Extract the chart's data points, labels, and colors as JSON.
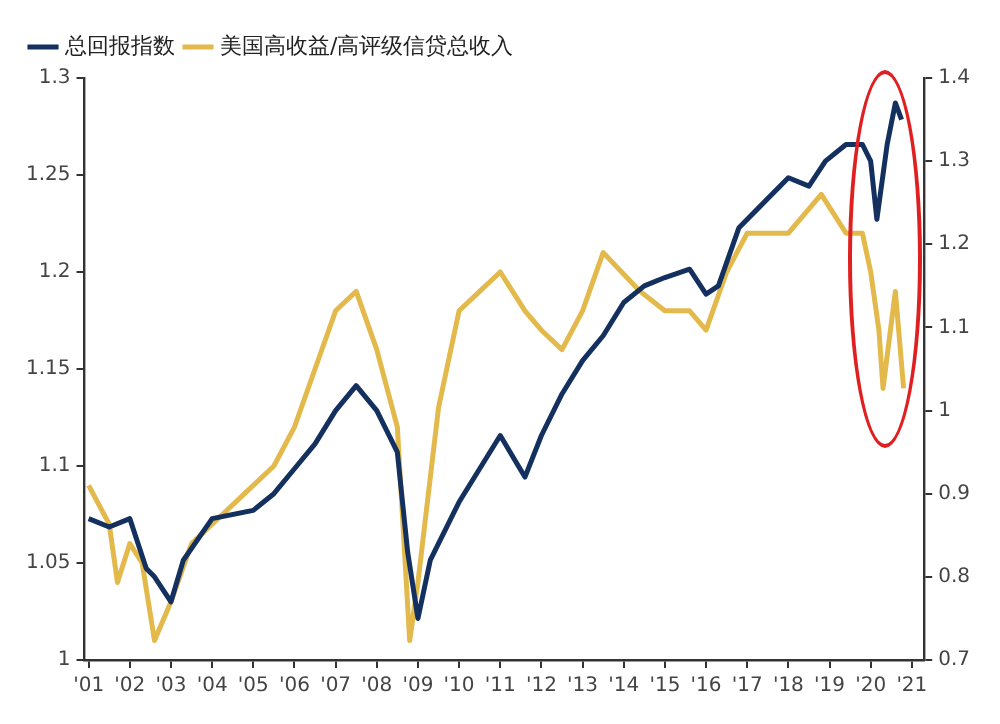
{
  "chart_data": {
    "type": "line",
    "legend": "top left",
    "grid": false,
    "marker": "none",
    "line_style": "solid",
    "xlim": [
      2000.9,
      2021.3
    ],
    "xticks": [
      {
        "value": 2001,
        "label": "'01"
      },
      {
        "value": 2002,
        "label": "'02"
      },
      {
        "value": 2003,
        "label": "'03"
      },
      {
        "value": 2004,
        "label": "'04"
      },
      {
        "value": 2005,
        "label": "'05"
      },
      {
        "value": 2006,
        "label": "'06"
      },
      {
        "value": 2007,
        "label": "'07"
      },
      {
        "value": 2008,
        "label": "'08"
      },
      {
        "value": 2009,
        "label": "'09"
      },
      {
        "value": 2010,
        "label": "'10"
      },
      {
        "value": 2011,
        "label": "'11"
      },
      {
        "value": 2012,
        "label": "'12"
      },
      {
        "value": 2013,
        "label": "'13"
      },
      {
        "value": 2014,
        "label": "'14"
      },
      {
        "value": 2015,
        "label": "'15"
      },
      {
        "value": 2016,
        "label": "'16"
      },
      {
        "value": 2017,
        "label": "'17"
      },
      {
        "value": 2018,
        "label": "'18"
      },
      {
        "value": 2019,
        "label": "'19"
      },
      {
        "value": 2020,
        "label": "'20"
      },
      {
        "value": 2021,
        "label": "'21"
      }
    ],
    "ylim": [
      1,
      1.3
    ],
    "yticks": [
      1,
      1.05,
      1.1,
      1.15,
      1.2,
      1.25,
      1.3
    ],
    "y2lim": [
      0.7,
      1.4
    ],
    "y2ticks": [
      0.7,
      0.8,
      0.9,
      1,
      1.1,
      1.2,
      1.3,
      1.4
    ],
    "series": [
      {
        "name": "总回报指数",
        "color": "#14305e",
        "axis": "y2",
        "x": [
          2001,
          2001.5,
          2002,
          2002.4,
          2002.6,
          2003,
          2003.3,
          2004,
          2005,
          2005.5,
          2006,
          2006.5,
          2007,
          2007.5,
          2008,
          2008.5,
          2008.75,
          2009,
          2009.3,
          2010,
          2010.5,
          2011,
          2011.6,
          2012,
          2012.5,
          2013,
          2013.5,
          2014,
          2014.5,
          2015,
          2015.6,
          2016,
          2016.3,
          2016.8,
          2018,
          2018.5,
          2018.9,
          2019.4,
          2019.8,
          2020,
          2020.15,
          2020.4,
          2020.6,
          2020.75
        ],
        "values": [
          0.87,
          0.86,
          0.87,
          0.81,
          0.8,
          0.77,
          0.82,
          0.87,
          0.88,
          0.9,
          0.93,
          0.96,
          1.0,
          1.03,
          1.0,
          0.95,
          0.83,
          0.75,
          0.82,
          0.89,
          0.93,
          0.97,
          0.92,
          0.97,
          1.02,
          1.06,
          1.09,
          1.13,
          1.15,
          1.16,
          1.17,
          1.14,
          1.15,
          1.22,
          1.28,
          1.27,
          1.3,
          1.32,
          1.32,
          1.3,
          1.23,
          1.32,
          1.37,
          1.35
        ]
      },
      {
        "name": "美国高收益/高评级信贷总收入",
        "color": "#e3b94c",
        "x": [
          2001,
          2001.5,
          2001.7,
          2002,
          2002.3,
          2002.6,
          2003,
          2003.5,
          2004,
          2005,
          2005.5,
          2006,
          2006.5,
          2007,
          2007.5,
          2008,
          2008.5,
          2008.8,
          2009,
          2009.5,
          2010,
          2010.5,
          2011,
          2011.6,
          2012,
          2012.5,
          2013,
          2013.5,
          2014.4,
          2015,
          2015.6,
          2016,
          2016.5,
          2017,
          2018,
          2018.8,
          2019.4,
          2019.8,
          2020,
          2020.2,
          2020.3,
          2020.6,
          2020.8
        ],
        "values": [
          1.09,
          1.07,
          1.04,
          1.06,
          1.05,
          1.01,
          1.03,
          1.06,
          1.07,
          1.09,
          1.1,
          1.12,
          1.15,
          1.18,
          1.19,
          1.16,
          1.12,
          1.01,
          1.04,
          1.13,
          1.18,
          1.19,
          1.2,
          1.18,
          1.17,
          1.16,
          1.18,
          1.21,
          1.19,
          1.18,
          1.18,
          1.17,
          1.2,
          1.22,
          1.22,
          1.24,
          1.22,
          1.22,
          1.2,
          1.17,
          1.14,
          1.19,
          1.14
        ]
      }
    ]
  }
}
